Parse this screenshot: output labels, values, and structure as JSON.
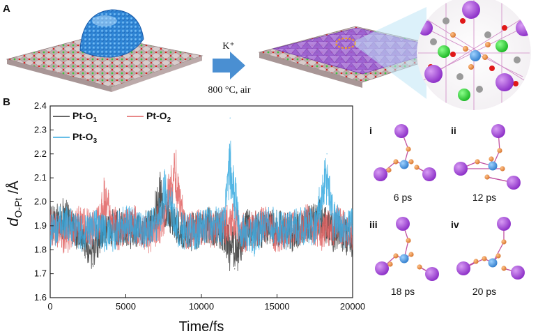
{
  "panel_a": {
    "letter": "A",
    "arrow_label_top": "K⁺",
    "arrow_label_bottom": "800 °C, air",
    "colors": {
      "nanoparticle": "#2f86d6",
      "overlayer": "#9b4fd0",
      "support": "#b9a9a9",
      "green_atom": "#2fcf3a"
    }
  },
  "panel_b": {
    "letter": "B",
    "snapshots": [
      {
        "roman": "i",
        "time": "6 ps"
      },
      {
        "roman": "ii",
        "time": "12 ps"
      },
      {
        "roman": "iii",
        "time": "18 ps"
      },
      {
        "roman": "iv",
        "time": "20 ps"
      }
    ],
    "atom_colors": {
      "K": "#a040d8",
      "Pt": "#3e8edc",
      "O": "#e58a3a",
      "bond": "#c050a0"
    }
  },
  "chart_data": {
    "type": "line",
    "xlabel": "Time/fs",
    "ylabel": "d_{O-Pt} /Å",
    "xlim": [
      0,
      20000
    ],
    "ylim": [
      1.6,
      2.4
    ],
    "xticks": [
      0,
      5000,
      10000,
      15000,
      20000
    ],
    "yticks": [
      1.6,
      1.7,
      1.8,
      1.9,
      2.0,
      2.1,
      2.2,
      2.3,
      2.4
    ],
    "legend": "top-left",
    "series": [
      {
        "name": "Pt-O1",
        "color": "#333333",
        "x": [
          0,
          1000,
          2000,
          2800,
          3500,
          4500,
          5500,
          6500,
          7300,
          7600,
          8500,
          9500,
          10500,
          11500,
          12200,
          13000,
          14000,
          15000,
          16000,
          17000,
          17800,
          18200,
          19000,
          20000
        ],
        "y": [
          1.92,
          1.95,
          1.85,
          1.74,
          1.88,
          1.9,
          1.87,
          1.89,
          2.08,
          1.98,
          1.88,
          1.87,
          1.91,
          1.85,
          1.72,
          1.9,
          1.88,
          1.89,
          1.86,
          1.92,
          1.95,
          1.9,
          1.85,
          1.83
        ]
      },
      {
        "name": "Pt-O2",
        "color": "#e06060",
        "x": [
          0,
          1000,
          2000,
          3000,
          3600,
          4500,
          5500,
          6500,
          7500,
          8200,
          9000,
          10000,
          11000,
          12000,
          13000,
          14000,
          15000,
          16000,
          17000,
          18000,
          19000,
          20000
        ],
        "y": [
          1.9,
          1.85,
          1.93,
          1.88,
          2.05,
          1.86,
          1.92,
          1.84,
          1.95,
          2.2,
          1.86,
          1.9,
          1.88,
          1.93,
          1.84,
          1.92,
          1.85,
          1.88,
          1.92,
          1.86,
          1.91,
          1.87
        ]
      },
      {
        "name": "Pt-O3",
        "color": "#35a9df",
        "x": [
          0,
          1000,
          2000,
          3000,
          4000,
          5000,
          6000,
          7000,
          7500,
          8500,
          9500,
          10500,
          11500,
          11900,
          12500,
          13500,
          14500,
          15500,
          16500,
          17500,
          18300,
          18700,
          19500,
          20000
        ],
        "y": [
          1.88,
          1.92,
          1.86,
          1.9,
          1.84,
          1.93,
          1.87,
          1.91,
          2.1,
          1.88,
          1.86,
          1.92,
          1.9,
          2.35,
          1.88,
          1.85,
          1.92,
          1.87,
          1.91,
          1.89,
          2.2,
          1.95,
          1.88,
          1.9
        ]
      }
    ]
  }
}
